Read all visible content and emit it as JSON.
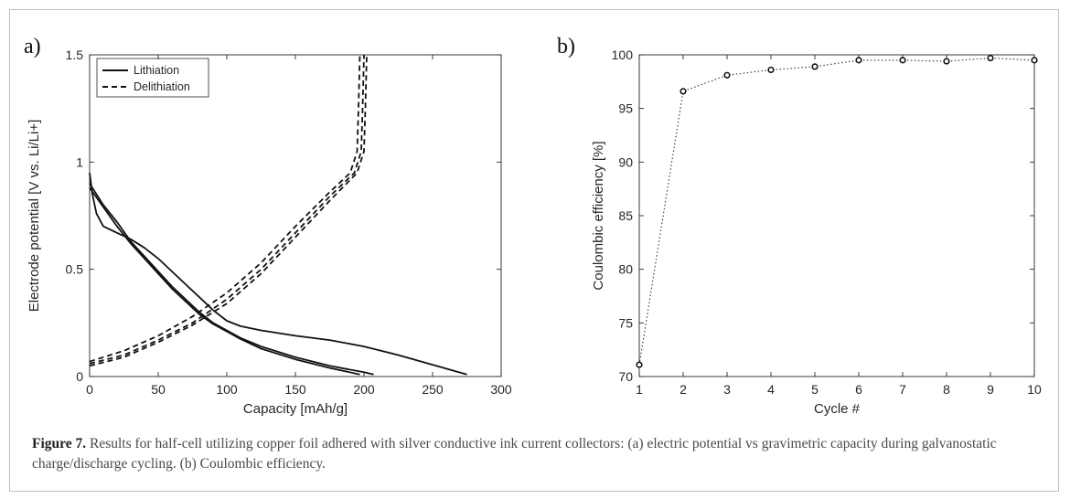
{
  "figure": {
    "panel_a_letter": "a)",
    "panel_b_letter": "b)",
    "caption_label": "Figure 7.",
    "caption_text": "Results for half-cell utilizing copper foil adhered with silver conductive ink current collectors: (a) electric potential vs gravimetric capacity during galvanostatic charge/discharge cycling. (b) Coulombic efficiency."
  },
  "chart_data": [
    {
      "type": "line",
      "xlabel": "Capacity [mAh/g]",
      "ylabel": "Electrode potential [V vs. Li/Li+]",
      "xlim": [
        0,
        300
      ],
      "ylim": [
        0,
        1.5
      ],
      "xticks": [
        "0",
        "50",
        "100",
        "150",
        "200",
        "250",
        "300"
      ],
      "yticks": [
        "0",
        "0.5",
        "1",
        "1.5"
      ],
      "legend_position": "top-left",
      "grid": false,
      "series": [
        {
          "name": "Lithiation",
          "style": "solid",
          "curves": [
            [
              [
                0,
                0.95
              ],
              [
                2,
                0.85
              ],
              [
                5,
                0.76
              ],
              [
                10,
                0.7
              ],
              [
                20,
                0.67
              ],
              [
                30,
                0.64
              ],
              [
                40,
                0.6
              ],
              [
                50,
                0.55
              ],
              [
                60,
                0.49
              ],
              [
                70,
                0.43
              ],
              [
                80,
                0.37
              ],
              [
                90,
                0.31
              ],
              [
                100,
                0.26
              ],
              [
                110,
                0.235
              ],
              [
                125,
                0.215
              ],
              [
                150,
                0.19
              ],
              [
                175,
                0.17
              ],
              [
                200,
                0.14
              ],
              [
                225,
                0.1
              ],
              [
                250,
                0.055
              ],
              [
                275,
                0.01
              ]
            ],
            [
              [
                0,
                0.9
              ],
              [
                10,
                0.8
              ],
              [
                20,
                0.72
              ],
              [
                30,
                0.63
              ],
              [
                40,
                0.56
              ],
              [
                50,
                0.49
              ],
              [
                60,
                0.42
              ],
              [
                70,
                0.36
              ],
              [
                80,
                0.3
              ],
              [
                90,
                0.25
              ],
              [
                100,
                0.215
              ],
              [
                110,
                0.18
              ],
              [
                125,
                0.14
              ],
              [
                150,
                0.09
              ],
              [
                175,
                0.05
              ],
              [
                200,
                0.02
              ],
              [
                207,
                0.01
              ]
            ],
            [
              [
                0,
                0.88
              ],
              [
                10,
                0.79
              ],
              [
                20,
                0.7
              ],
              [
                30,
                0.62
              ],
              [
                40,
                0.55
              ],
              [
                50,
                0.48
              ],
              [
                60,
                0.41
              ],
              [
                70,
                0.35
              ],
              [
                80,
                0.29
              ],
              [
                90,
                0.245
              ],
              [
                100,
                0.21
              ],
              [
                110,
                0.175
              ],
              [
                125,
                0.13
              ],
              [
                150,
                0.08
              ],
              [
                175,
                0.04
              ],
              [
                197,
                0.01
              ]
            ]
          ]
        },
        {
          "name": "Delithiation",
          "style": "dashed",
          "curves": [
            [
              [
                0,
                0.07
              ],
              [
                25,
                0.12
              ],
              [
                50,
                0.19
              ],
              [
                75,
                0.28
              ],
              [
                100,
                0.39
              ],
              [
                125,
                0.53
              ],
              [
                150,
                0.7
              ],
              [
                175,
                0.86
              ],
              [
                190,
                0.95
              ],
              [
                195,
                1.05
              ],
              [
                196,
                1.25
              ],
              [
                197,
                1.5
              ]
            ],
            [
              [
                0,
                0.06
              ],
              [
                25,
                0.1
              ],
              [
                50,
                0.17
              ],
              [
                75,
                0.25
              ],
              [
                100,
                0.36
              ],
              [
                125,
                0.5
              ],
              [
                150,
                0.67
              ],
              [
                175,
                0.84
              ],
              [
                193,
                0.95
              ],
              [
                198,
                1.05
              ],
              [
                199,
                1.25
              ],
              [
                200,
                1.5
              ]
            ],
            [
              [
                0,
                0.05
              ],
              [
                25,
                0.09
              ],
              [
                50,
                0.16
              ],
              [
                75,
                0.24
              ],
              [
                100,
                0.34
              ],
              [
                125,
                0.48
              ],
              [
                150,
                0.65
              ],
              [
                175,
                0.82
              ],
              [
                195,
                0.95
              ],
              [
                200,
                1.05
              ],
              [
                201,
                1.25
              ],
              [
                202,
                1.5
              ]
            ]
          ]
        }
      ]
    },
    {
      "type": "line",
      "xlabel": "Cycle #",
      "ylabel": "Coulombic efficiency [%]",
      "xlim": [
        1,
        10
      ],
      "ylim": [
        70,
        100
      ],
      "xticks": [
        "1",
        "2",
        "3",
        "4",
        "5",
        "6",
        "7",
        "8",
        "9",
        "10"
      ],
      "yticks": [
        "70",
        "75",
        "80",
        "85",
        "90",
        "95",
        "100"
      ],
      "grid": false,
      "marker": "circle",
      "line_style": "dotted",
      "x": [
        1,
        2,
        3,
        4,
        5,
        6,
        7,
        8,
        9,
        10
      ],
      "values": [
        71.1,
        96.6,
        98.1,
        98.6,
        98.9,
        99.5,
        99.5,
        99.4,
        99.7,
        99.5
      ]
    }
  ]
}
